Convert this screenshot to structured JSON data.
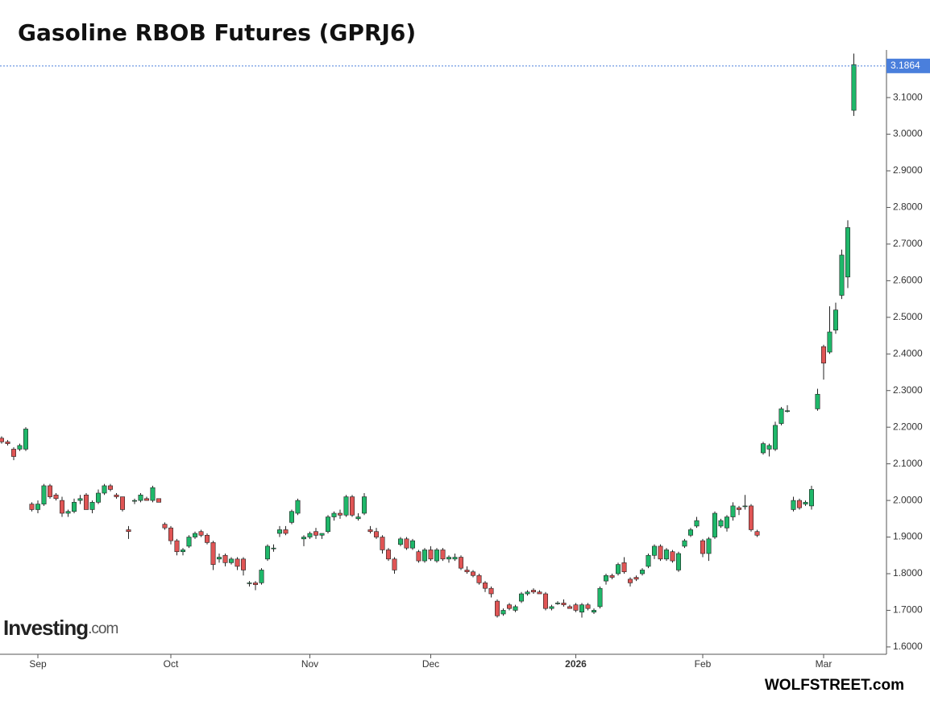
{
  "chart_data": {
    "type": "candlestick",
    "title": "Gasoline RBOB Futures (GPRJ6)",
    "source": "WOLFSTREET.com",
    "logo": {
      "name": "Investing",
      "suffix": ".com"
    },
    "up_color": "#1fb86a",
    "down_color": "#e05555",
    "last_price": {
      "value": 3.1864,
      "label": "3.1864"
    },
    "last_price_color": "#4a7fdc",
    "ylim": [
      1.58,
      3.23
    ],
    "yticks": [
      {
        "value": 1.6,
        "label": "1.6000"
      },
      {
        "value": 1.7,
        "label": "1.7000"
      },
      {
        "value": 1.8,
        "label": "1.8000"
      },
      {
        "value": 1.9,
        "label": "1.9000"
      },
      {
        "value": 2.0,
        "label": "2.0000"
      },
      {
        "value": 2.1,
        "label": "2.1000"
      },
      {
        "value": 2.2,
        "label": "2.2000"
      },
      {
        "value": 2.3,
        "label": "2.3000"
      },
      {
        "value": 2.4,
        "label": "2.4000"
      },
      {
        "value": 2.5,
        "label": "2.5000"
      },
      {
        "value": 2.6,
        "label": "2.6000"
      },
      {
        "value": 2.7,
        "label": "2.7000"
      },
      {
        "value": 2.8,
        "label": "2.8000"
      },
      {
        "value": 2.9,
        "label": "2.9000"
      },
      {
        "value": 3.0,
        "label": "3.0000"
      },
      {
        "value": 3.1,
        "label": "3.1000"
      }
    ],
    "categories": [
      null,
      null,
      null,
      null,
      null,
      null,
      "Sep",
      null,
      null,
      null,
      null,
      null,
      null,
      null,
      null,
      null,
      null,
      null,
      null,
      null,
      null,
      null,
      null,
      null,
      null,
      null,
      null,
      null,
      "Oct",
      null,
      null,
      null,
      null,
      null,
      null,
      null,
      null,
      null,
      null,
      null,
      null,
      null,
      null,
      null,
      null,
      null,
      null,
      null,
      null,
      null,
      null,
      "Nov",
      null,
      null,
      null,
      null,
      null,
      null,
      null,
      null,
      null,
      null,
      null,
      null,
      null,
      null,
      null,
      null,
      null,
      null,
      null,
      "Dec",
      null,
      null,
      null,
      null,
      null,
      null,
      null,
      null,
      null,
      null,
      null,
      null,
      null,
      null,
      null,
      null,
      null,
      null,
      null,
      null,
      null,
      null,
      null,
      "2026",
      null,
      null,
      null,
      null,
      null,
      null,
      null,
      null,
      null,
      null,
      null,
      null,
      null,
      null,
      null,
      null,
      null,
      null,
      null,
      null,
      "Feb",
      null,
      null,
      null,
      null,
      null,
      null,
      null,
      null,
      null,
      null,
      null,
      null,
      null,
      null,
      null,
      null,
      null,
      null,
      null,
      "Mar",
      null,
      null,
      null,
      null,
      null
    ],
    "open": [
      2.17,
      2.16,
      2.14,
      2.14,
      2.14,
      1.99,
      1.975,
      1.99,
      2.04,
      2.015,
      2.0,
      1.965,
      1.97,
      2.0,
      2.015,
      1.975,
      1.995,
      2.02,
      2.04,
      2.015,
      2.01,
      1.92,
      2.0,
      2.0,
      2.005,
      2.0,
      2.005,
      1.935,
      1.925,
      1.89,
      1.86,
      1.875,
      1.9,
      1.915,
      1.905,
      1.885,
      1.84,
      1.85,
      1.83,
      1.84,
      1.84,
      1.775,
      1.775,
      1.775,
      1.84,
      1.87,
      1.91,
      1.92,
      1.94,
      1.965,
      1.895,
      1.9,
      1.915,
      1.905,
      1.915,
      1.955,
      1.965,
      1.96,
      2.01,
      1.95,
      1.965,
      1.92,
      1.915,
      1.9,
      1.865,
      1.84,
      1.88,
      1.895,
      1.87,
      1.86,
      1.835,
      1.865,
      1.835,
      1.865,
      1.84,
      1.84,
      1.845,
      1.81,
      1.805,
      1.795,
      1.775,
      1.76,
      1.725,
      1.69,
      1.715,
      1.7,
      1.725,
      1.745,
      1.755,
      1.75,
      1.745,
      1.705,
      1.72,
      1.72,
      1.71,
      1.715,
      1.695,
      1.715,
      1.695,
      1.71,
      1.78,
      1.795,
      1.8,
      1.83,
      1.785,
      1.79,
      1.8,
      1.82,
      1.85,
      1.875,
      1.84,
      1.86,
      1.81,
      1.875,
      1.905,
      1.93,
      1.89,
      1.855,
      1.9,
      1.93,
      1.925,
      1.955,
      1.98,
      1.985,
      1.985,
      1.915,
      2.13,
      2.14,
      2.14,
      2.21,
      2.245,
      1.975,
      2.0,
      1.99,
      1.985,
      2.25,
      2.42,
      2.405,
      2.465,
      2.56,
      2.61,
      3.065
    ],
    "high": [
      2.175,
      2.165,
      2.145,
      2.155,
      2.2,
      1.995,
      2.0,
      2.045,
      2.045,
      2.02,
      2.01,
      1.975,
      2.005,
      2.015,
      2.02,
      2.0,
      2.03,
      2.045,
      2.045,
      2.02,
      2.01,
      1.93,
      2.005,
      2.02,
      2.01,
      2.04,
      2.005,
      1.94,
      1.93,
      1.895,
      1.87,
      1.905,
      1.915,
      1.92,
      1.91,
      1.89,
      1.855,
      1.855,
      1.845,
      1.845,
      1.845,
      1.78,
      1.78,
      1.815,
      1.88,
      1.88,
      1.93,
      1.93,
      1.975,
      2.005,
      1.905,
      1.915,
      1.925,
      1.91,
      1.96,
      1.97,
      1.975,
      2.015,
      2.015,
      1.965,
      2.02,
      1.93,
      1.925,
      1.905,
      1.87,
      1.845,
      1.9,
      1.9,
      1.895,
      1.865,
      1.87,
      1.875,
      1.87,
      1.87,
      1.85,
      1.855,
      1.85,
      1.82,
      1.81,
      1.8,
      1.78,
      1.765,
      1.73,
      1.705,
      1.72,
      1.715,
      1.75,
      1.755,
      1.76,
      1.755,
      1.75,
      1.715,
      1.725,
      1.73,
      1.715,
      1.72,
      1.72,
      1.72,
      1.705,
      1.765,
      1.8,
      1.8,
      1.83,
      1.845,
      1.79,
      1.795,
      1.815,
      1.855,
      1.88,
      1.88,
      1.87,
      1.865,
      1.86,
      1.895,
      1.925,
      1.955,
      1.895,
      1.9,
      1.97,
      1.95,
      1.96,
      1.995,
      1.985,
      2.015,
      1.99,
      1.92,
      2.16,
      2.155,
      2.215,
      2.255,
      2.26,
      2.01,
      2.005,
      2.0,
      2.04,
      2.305,
      2.425,
      2.53,
      2.54,
      2.685,
      2.765,
      3.22
    ],
    "low": [
      2.155,
      2.15,
      2.11,
      2.135,
      2.135,
      1.97,
      1.965,
      1.985,
      2.005,
      2.0,
      1.955,
      1.955,
      1.965,
      1.99,
      1.975,
      1.965,
      1.99,
      2.015,
      2.025,
      2.005,
      1.97,
      1.895,
      1.99,
      1.995,
      2.0,
      1.995,
      1.995,
      1.92,
      1.88,
      1.85,
      1.85,
      1.87,
      1.895,
      1.9,
      1.88,
      1.81,
      1.83,
      1.82,
      1.825,
      1.81,
      1.795,
      1.765,
      1.755,
      1.77,
      1.835,
      1.86,
      1.9,
      1.905,
      1.935,
      1.96,
      1.875,
      1.895,
      1.895,
      1.895,
      1.91,
      1.945,
      1.95,
      1.955,
      1.955,
      1.945,
      1.96,
      1.91,
      1.895,
      1.855,
      1.835,
      1.8,
      1.875,
      1.865,
      1.865,
      1.83,
      1.83,
      1.835,
      1.83,
      1.835,
      1.83,
      1.835,
      1.81,
      1.8,
      1.79,
      1.77,
      1.75,
      1.735,
      1.68,
      1.685,
      1.7,
      1.695,
      1.72,
      1.74,
      1.745,
      1.745,
      1.7,
      1.7,
      1.715,
      1.71,
      1.705,
      1.695,
      1.68,
      1.7,
      1.69,
      1.705,
      1.77,
      1.785,
      1.795,
      1.8,
      1.765,
      1.78,
      1.795,
      1.815,
      1.84,
      1.835,
      1.835,
      1.83,
      1.805,
      1.87,
      1.9,
      1.925,
      1.845,
      1.835,
      1.895,
      1.925,
      1.915,
      1.945,
      1.96,
      1.975,
      1.915,
      1.9,
      2.125,
      2.12,
      2.135,
      2.205,
      2.24,
      1.97,
      1.975,
      1.985,
      1.975,
      2.245,
      2.33,
      2.4,
      2.455,
      2.55,
      2.58,
      3.05
    ],
    "close": [
      2.16,
      2.155,
      2.12,
      2.15,
      2.195,
      1.975,
      1.99,
      2.04,
      2.01,
      2.005,
      1.965,
      1.97,
      1.995,
      2.005,
      1.975,
      1.995,
      2.02,
      2.04,
      2.03,
      2.01,
      1.975,
      1.915,
      2.0,
      2.015,
      2.0,
      2.035,
      1.995,
      1.925,
      1.89,
      1.86,
      1.865,
      1.9,
      1.91,
      1.905,
      1.885,
      1.825,
      1.845,
      1.83,
      1.84,
      1.82,
      1.81,
      1.775,
      1.77,
      1.81,
      1.875,
      1.87,
      1.92,
      1.91,
      1.97,
      2.0,
      1.9,
      1.91,
      1.905,
      1.91,
      1.955,
      1.965,
      1.96,
      2.01,
      1.96,
      1.955,
      2.01,
      1.915,
      1.9,
      1.865,
      1.84,
      1.81,
      1.895,
      1.87,
      1.89,
      1.835,
      1.865,
      1.84,
      1.865,
      1.84,
      1.845,
      1.845,
      1.815,
      1.805,
      1.795,
      1.775,
      1.76,
      1.745,
      1.685,
      1.7,
      1.705,
      1.71,
      1.745,
      1.75,
      1.75,
      1.745,
      1.705,
      1.71,
      1.72,
      1.715,
      1.705,
      1.7,
      1.715,
      1.705,
      1.7,
      1.76,
      1.795,
      1.79,
      1.825,
      1.805,
      1.775,
      1.785,
      1.81,
      1.85,
      1.875,
      1.84,
      1.865,
      1.835,
      1.855,
      1.89,
      1.92,
      1.945,
      1.855,
      1.895,
      1.965,
      1.945,
      1.955,
      1.985,
      1.975,
      1.985,
      1.92,
      1.905,
      2.155,
      2.15,
      2.205,
      2.25,
      2.245,
      2.0,
      1.98,
      1.995,
      2.03,
      2.29,
      2.375,
      2.46,
      2.52,
      2.67,
      2.745,
      3.19
    ]
  }
}
